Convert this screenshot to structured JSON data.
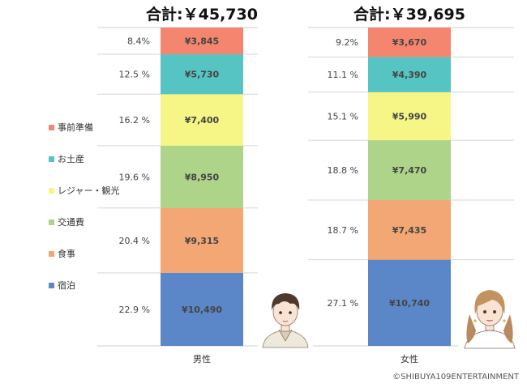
{
  "chart_data": {
    "type": "bar",
    "stacked": true,
    "normalized": true,
    "categories": [
      "男性",
      "女性"
    ],
    "totals": [
      "合計:￥45,730",
      "合計:￥39,695"
    ],
    "series": [
      {
        "name": "宿泊",
        "color": "#5b87c8",
        "values": [
          10490,
          10740
        ],
        "value_labels": [
          "¥10,490",
          "¥10,740"
        ],
        "percent_labels": [
          "22.9 %",
          "27.1 %"
        ],
        "percents": [
          22.9,
          27.1
        ]
      },
      {
        "name": "食事",
        "color": "#f3a774",
        "values": [
          9315,
          7435
        ],
        "value_labels": [
          "¥9,315",
          "¥7,435"
        ],
        "percent_labels": [
          "20.4 %",
          "18.7 %"
        ],
        "percents": [
          20.4,
          18.7
        ]
      },
      {
        "name": "交通費",
        "color": "#aed489",
        "values": [
          8950,
          7470
        ],
        "value_labels": [
          "¥8,950",
          "¥7,470"
        ],
        "percent_labels": [
          "19.6 %",
          "18.8 %"
        ],
        "percents": [
          19.6,
          18.8
        ]
      },
      {
        "name": "レジャー・観光",
        "color": "#f6f686",
        "values": [
          7400,
          5990
        ],
        "value_labels": [
          "¥7,400",
          "¥5,990"
        ],
        "percent_labels": [
          "16.2 %",
          "15.1 %"
        ],
        "percents": [
          16.2,
          15.1
        ]
      },
      {
        "name": "お土産",
        "color": "#57c4c4",
        "values": [
          5730,
          4390
        ],
        "value_labels": [
          "¥5,730",
          "¥4,390"
        ],
        "percent_labels": [
          "12.5 %",
          "11.1 %"
        ],
        "percents": [
          12.5,
          11.1
        ]
      },
      {
        "name": "事前準備",
        "color": "#f4866f",
        "values": [
          3845,
          3670
        ],
        "value_labels": [
          "¥3,845",
          "¥3,670"
        ],
        "percent_labels": [
          "8.4%",
          "9.2%"
        ],
        "percents": [
          8.4,
          9.2
        ]
      }
    ],
    "legend": [
      "事前準備",
      "お土産",
      "レジャー・観光",
      "交通費",
      "食事",
      "宿泊"
    ],
    "legend_position": "left",
    "grid": true
  },
  "credit": "©SHIBUYA109ENTERTAINMENT"
}
